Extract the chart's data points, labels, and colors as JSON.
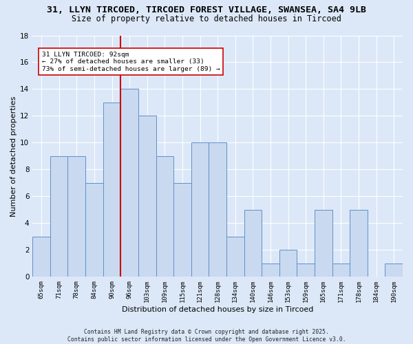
{
  "title_line1": "31, LLYN TIRCOED, TIRCOED FOREST VILLAGE, SWANSEA, SA4 9LB",
  "title_line2": "Size of property relative to detached houses in Tircoed",
  "xlabel": "Distribution of detached houses by size in Tircoed",
  "ylabel": "Number of detached properties",
  "categories": [
    "65sqm",
    "71sqm",
    "78sqm",
    "84sqm",
    "90sqm",
    "96sqm",
    "103sqm",
    "109sqm",
    "115sqm",
    "121sqm",
    "128sqm",
    "134sqm",
    "140sqm",
    "146sqm",
    "153sqm",
    "159sqm",
    "165sqm",
    "171sqm",
    "178sqm",
    "184sqm",
    "190sqm"
  ],
  "values": [
    3,
    9,
    9,
    7,
    13,
    14,
    12,
    9,
    7,
    10,
    10,
    3,
    5,
    1,
    2,
    1,
    5,
    1,
    5,
    0,
    1
  ],
  "bar_color": "#c9d9f0",
  "bar_edge_color": "#6090c8",
  "background_color": "#dce8f8",
  "grid_color": "#ffffff",
  "vline_x": 4.5,
  "vline_color": "#cc0000",
  "annotation_text": "31 LLYN TIRCOED: 92sqm\n← 27% of detached houses are smaller (33)\n73% of semi-detached houses are larger (89) →",
  "annotation_box_color": "#ffffff",
  "annotation_box_edge": "#cc0000",
  "ylim": [
    0,
    18
  ],
  "yticks": [
    0,
    2,
    4,
    6,
    8,
    10,
    12,
    14,
    16,
    18
  ],
  "footer_text": "Contains HM Land Registry data © Crown copyright and database right 2025.\nContains public sector information licensed under the Open Government Licence v3.0.",
  "title_fontsize": 9.5,
  "subtitle_fontsize": 8.5,
  "xlabel_fontsize": 8,
  "ylabel_fontsize": 8
}
